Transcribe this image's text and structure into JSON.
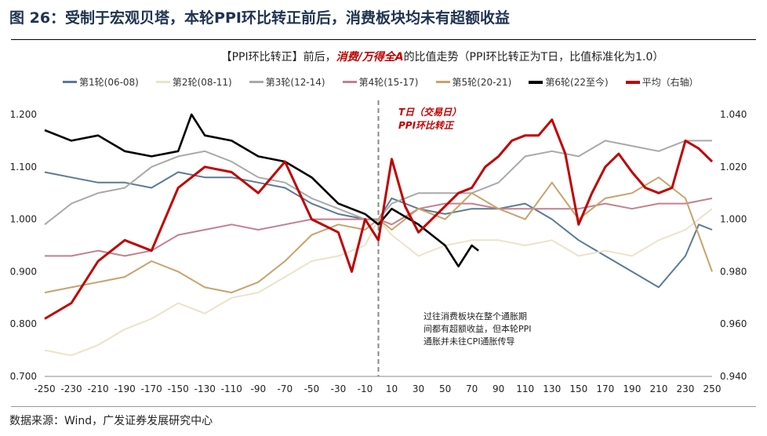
{
  "title": "图 26：受制于宏观贝塔，本轮PPI环比转正前后，消费板块均未有超额收益",
  "subtitle": {
    "pre": "【PPI环比转正】前后，",
    "highlight": "消费/万得全A",
    "post": "的比值走势（PPI环比转正为T日，比值标准化为1.0）"
  },
  "source": "数据来源：Wind，广发证券发展研究中心",
  "chart_data": {
    "type": "line",
    "xlim": [
      -250,
      250
    ],
    "ylim_left": [
      0.7,
      1.2
    ],
    "ylim_right": [
      0.94,
      1.04
    ],
    "x_ticks": [
      -250,
      -230,
      -210,
      -190,
      -170,
      -150,
      -130,
      -110,
      -90,
      -70,
      -50,
      -30,
      -10,
      10,
      30,
      50,
      70,
      90,
      110,
      130,
      150,
      170,
      190,
      210,
      230,
      250
    ],
    "y_ticks_left": [
      "0.700",
      "0.800",
      "0.900",
      "1.000",
      "1.100",
      "1.200"
    ],
    "y_ticks_right": [
      "0.940",
      "0.960",
      "0.980",
      "1.000",
      "1.020",
      "1.040"
    ],
    "legend_position": "top",
    "annotations": {
      "t_day": [
        "T日（交易日）",
        "PPI环比转正"
      ],
      "note": [
        "过往消费板块在整个通胀期",
        "间都有超额收益，但本轮PPI",
        "通胀并未往CPI通胀传导"
      ]
    },
    "series": [
      {
        "name": "第1轮(06-08)",
        "color": "#5b7a94",
        "axis": "left",
        "points": [
          [
            -250,
            1.09
          ],
          [
            -230,
            1.08
          ],
          [
            -210,
            1.07
          ],
          [
            -190,
            1.07
          ],
          [
            -170,
            1.06
          ],
          [
            -150,
            1.09
          ],
          [
            -130,
            1.08
          ],
          [
            -110,
            1.08
          ],
          [
            -90,
            1.07
          ],
          [
            -70,
            1.06
          ],
          [
            -50,
            1.03
          ],
          [
            -30,
            1.01
          ],
          [
            -10,
            1.0
          ],
          [
            0,
            1.0
          ],
          [
            10,
            1.04
          ],
          [
            30,
            1.02
          ],
          [
            50,
            1.01
          ],
          [
            70,
            1.02
          ],
          [
            90,
            1.02
          ],
          [
            110,
            1.03
          ],
          [
            130,
            1.0
          ],
          [
            150,
            0.96
          ],
          [
            170,
            0.93
          ],
          [
            190,
            0.9
          ],
          [
            210,
            0.87
          ],
          [
            230,
            0.93
          ],
          [
            240,
            0.99
          ],
          [
            250,
            0.98
          ]
        ]
      },
      {
        "name": "第2轮(08-11)",
        "color": "#ece3c8",
        "axis": "left",
        "points": [
          [
            -250,
            0.75
          ],
          [
            -230,
            0.74
          ],
          [
            -210,
            0.76
          ],
          [
            -190,
            0.79
          ],
          [
            -170,
            0.81
          ],
          [
            -150,
            0.84
          ],
          [
            -130,
            0.82
          ],
          [
            -110,
            0.85
          ],
          [
            -90,
            0.86
          ],
          [
            -70,
            0.89
          ],
          [
            -50,
            0.92
          ],
          [
            -30,
            0.93
          ],
          [
            -10,
            0.95
          ],
          [
            0,
            1.0
          ],
          [
            10,
            0.97
          ],
          [
            30,
            0.93
          ],
          [
            50,
            0.95
          ],
          [
            70,
            0.96
          ],
          [
            90,
            0.96
          ],
          [
            110,
            0.95
          ],
          [
            130,
            0.96
          ],
          [
            150,
            0.93
          ],
          [
            170,
            0.94
          ],
          [
            190,
            0.93
          ],
          [
            210,
            0.96
          ],
          [
            230,
            0.98
          ],
          [
            250,
            1.02
          ]
        ]
      },
      {
        "name": "第3轮(12-14)",
        "color": "#a9a9a9",
        "axis": "left",
        "points": [
          [
            -250,
            0.99
          ],
          [
            -230,
            1.03
          ],
          [
            -210,
            1.05
          ],
          [
            -190,
            1.06
          ],
          [
            -170,
            1.1
          ],
          [
            -150,
            1.12
          ],
          [
            -130,
            1.13
          ],
          [
            -110,
            1.11
          ],
          [
            -90,
            1.08
          ],
          [
            -70,
            1.07
          ],
          [
            -50,
            1.04
          ],
          [
            -30,
            1.02
          ],
          [
            -10,
            1.0
          ],
          [
            0,
            1.0
          ],
          [
            10,
            1.03
          ],
          [
            30,
            1.05
          ],
          [
            50,
            1.05
          ],
          [
            70,
            1.05
          ],
          [
            90,
            1.07
          ],
          [
            110,
            1.12
          ],
          [
            130,
            1.13
          ],
          [
            150,
            1.12
          ],
          [
            170,
            1.15
          ],
          [
            190,
            1.14
          ],
          [
            210,
            1.13
          ],
          [
            230,
            1.15
          ],
          [
            250,
            1.15
          ]
        ]
      },
      {
        "name": "第4轮(15-17)",
        "color": "#c4808e",
        "axis": "left",
        "points": [
          [
            -250,
            0.93
          ],
          [
            -230,
            0.93
          ],
          [
            -210,
            0.94
          ],
          [
            -190,
            0.93
          ],
          [
            -170,
            0.94
          ],
          [
            -150,
            0.97
          ],
          [
            -130,
            0.98
          ],
          [
            -110,
            0.99
          ],
          [
            -90,
            0.98
          ],
          [
            -70,
            0.99
          ],
          [
            -50,
            1.0
          ],
          [
            -30,
            1.0
          ],
          [
            -10,
            1.0
          ],
          [
            0,
            1.0
          ],
          [
            10,
            0.99
          ],
          [
            30,
            1.02
          ],
          [
            50,
            1.03
          ],
          [
            70,
            1.03
          ],
          [
            90,
            1.02
          ],
          [
            110,
            1.02
          ],
          [
            130,
            1.02
          ],
          [
            150,
            1.02
          ],
          [
            170,
            1.03
          ],
          [
            190,
            1.02
          ],
          [
            210,
            1.03
          ],
          [
            230,
            1.03
          ],
          [
            250,
            1.04
          ]
        ]
      },
      {
        "name": "第5轮(20-21)",
        "color": "#c9a26c",
        "axis": "left",
        "points": [
          [
            -250,
            0.86
          ],
          [
            -230,
            0.87
          ],
          [
            -210,
            0.88
          ],
          [
            -190,
            0.89
          ],
          [
            -170,
            0.92
          ],
          [
            -150,
            0.9
          ],
          [
            -130,
            0.87
          ],
          [
            -110,
            0.86
          ],
          [
            -90,
            0.88
          ],
          [
            -70,
            0.92
          ],
          [
            -50,
            0.97
          ],
          [
            -30,
            0.99
          ],
          [
            -10,
            0.98
          ],
          [
            0,
            1.0
          ],
          [
            10,
            0.98
          ],
          [
            30,
            1.02
          ],
          [
            50,
            1.0
          ],
          [
            70,
            1.05
          ],
          [
            90,
            1.02
          ],
          [
            110,
            1.0
          ],
          [
            130,
            1.07
          ],
          [
            150,
            1.0
          ],
          [
            170,
            1.04
          ],
          [
            190,
            1.05
          ],
          [
            210,
            1.08
          ],
          [
            230,
            1.04
          ],
          [
            250,
            0.9
          ]
        ]
      },
      {
        "name": "第6轮(22至今)",
        "color": "#000000",
        "axis": "left",
        "points": [
          [
            -250,
            1.17
          ],
          [
            -230,
            1.15
          ],
          [
            -210,
            1.16
          ],
          [
            -190,
            1.13
          ],
          [
            -170,
            1.12
          ],
          [
            -150,
            1.13
          ],
          [
            -140,
            1.2
          ],
          [
            -130,
            1.16
          ],
          [
            -110,
            1.15
          ],
          [
            -90,
            1.12
          ],
          [
            -70,
            1.11
          ],
          [
            -50,
            1.08
          ],
          [
            -30,
            1.03
          ],
          [
            -10,
            1.01
          ],
          [
            0,
            0.99
          ],
          [
            10,
            1.02
          ],
          [
            30,
            0.99
          ],
          [
            50,
            0.95
          ],
          [
            60,
            0.91
          ],
          [
            70,
            0.95
          ],
          [
            75,
            0.94
          ]
        ]
      },
      {
        "name": "平均（右轴）",
        "color": "#c00000",
        "axis": "right",
        "points": [
          [
            -250,
            0.962
          ],
          [
            -230,
            0.968
          ],
          [
            -210,
            0.984
          ],
          [
            -190,
            0.992
          ],
          [
            -170,
            0.988
          ],
          [
            -150,
            1.012
          ],
          [
            -130,
            1.02
          ],
          [
            -110,
            1.018
          ],
          [
            -90,
            1.01
          ],
          [
            -70,
            1.022
          ],
          [
            -50,
            1.0
          ],
          [
            -30,
            0.995
          ],
          [
            -20,
            0.98
          ],
          [
            -10,
            1.0
          ],
          [
            0,
            0.992
          ],
          [
            10,
            1.023
          ],
          [
            20,
            1.005
          ],
          [
            30,
            0.995
          ],
          [
            40,
            1.0
          ],
          [
            50,
            1.005
          ],
          [
            60,
            1.01
          ],
          [
            70,
            1.012
          ],
          [
            80,
            1.02
          ],
          [
            90,
            1.024
          ],
          [
            100,
            1.03
          ],
          [
            110,
            1.032
          ],
          [
            120,
            1.032
          ],
          [
            130,
            1.038
          ],
          [
            140,
            1.025
          ],
          [
            150,
            0.998
          ],
          [
            160,
            1.01
          ],
          [
            170,
            1.02
          ],
          [
            180,
            1.025
          ],
          [
            190,
            1.018
          ],
          [
            200,
            1.012
          ],
          [
            210,
            1.01
          ],
          [
            220,
            1.012
          ],
          [
            230,
            1.03
          ],
          [
            240,
            1.027
          ],
          [
            250,
            1.022
          ]
        ]
      }
    ]
  }
}
